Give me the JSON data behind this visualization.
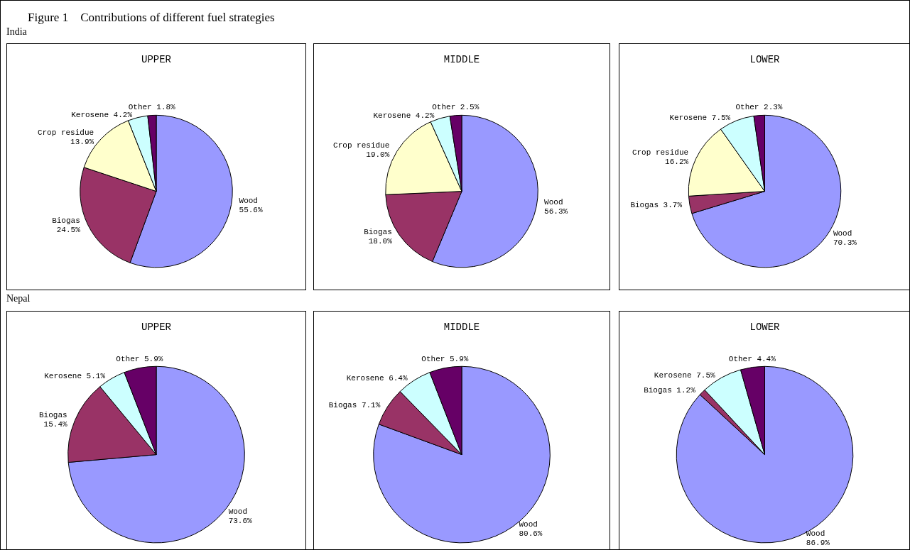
{
  "chart_data": [
    {
      "type": "pie",
      "title": "UPPER",
      "annotations": [
        "Figure 1    Contributions of different fuel strategies",
        "India"
      ],
      "categories": [
        "Wood",
        "Biogas",
        "Crop residue",
        "Kerosene",
        "Other"
      ],
      "values": [
        55.6,
        24.5,
        13.9,
        4.2,
        1.8
      ],
      "colors": [
        "#9999ff",
        "#993366",
        "#ffffcc",
        "#ccffff",
        "#660066"
      ],
      "value_labels": [
        "55.6%",
        "24.5%",
        "13.9%",
        "4.2%",
        "1.8%"
      ],
      "legend": false
    },
    {
      "type": "pie",
      "title": "MIDDLE",
      "categories": [
        "Wood",
        "Biogas",
        "Crop residue",
        "Kerosene",
        "Other"
      ],
      "values": [
        56.3,
        18.0,
        19.0,
        4.2,
        2.5
      ],
      "colors": [
        "#9999ff",
        "#993366",
        "#ffffcc",
        "#ccffff",
        "#660066"
      ],
      "value_labels": [
        "56.3%",
        "18.0%",
        "19.0%",
        "4.2%",
        "2.5%"
      ],
      "legend": false
    },
    {
      "type": "pie",
      "title": "LOWER",
      "categories": [
        "Wood",
        "Biogas",
        "Crop residue",
        "Kerosene",
        "Other"
      ],
      "values": [
        70.3,
        3.7,
        16.2,
        7.5,
        2.3
      ],
      "colors": [
        "#9999ff",
        "#993366",
        "#ffffcc",
        "#ccffff",
        "#660066"
      ],
      "value_labels": [
        "70.3%",
        "3.7%",
        "16.2%",
        "7.5%",
        "2.3%"
      ],
      "legend": false
    },
    {
      "type": "pie",
      "title": "UPPER",
      "annotations": [
        "Nepal"
      ],
      "categories": [
        "Wood",
        "Biogas",
        "Kerosene",
        "Other"
      ],
      "values": [
        73.6,
        15.4,
        5.1,
        5.9
      ],
      "colors": [
        "#9999ff",
        "#993366",
        "#ccffff",
        "#660066"
      ],
      "value_labels": [
        "73.6%",
        "15.4%",
        "5.1%",
        "5.9%"
      ],
      "legend": false
    },
    {
      "type": "pie",
      "title": "MIDDLE",
      "categories": [
        "Wood",
        "Biogas",
        "Kerosene",
        "Other"
      ],
      "values": [
        80.6,
        7.1,
        6.4,
        5.9
      ],
      "colors": [
        "#9999ff",
        "#993366",
        "#ccffff",
        "#660066"
      ],
      "value_labels": [
        "80.6%",
        "7.1%",
        "6.4%",
        "5.9%"
      ],
      "legend": false
    },
    {
      "type": "pie",
      "title": "LOWER",
      "categories": [
        "Wood",
        "Biogas",
        "Kerosene",
        "Other"
      ],
      "values": [
        86.9,
        1.2,
        7.5,
        4.4
      ],
      "colors": [
        "#9999ff",
        "#993366",
        "#ccffff",
        "#660066"
      ],
      "value_labels": [
        "86.9%",
        "1.2%",
        "7.5%",
        "4.4%"
      ],
      "legend": false
    }
  ]
}
